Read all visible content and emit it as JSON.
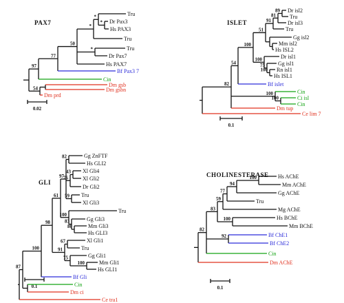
{
  "colors": {
    "black": "#111111",
    "blue": "#2b2bd9",
    "green": "#13a313",
    "red": "#e0301e"
  },
  "panels": {
    "pax7": {
      "title": "PAX7",
      "scale_label": "0.02",
      "leaves": [
        {
          "text": "Tru",
          "color": "black"
        },
        {
          "text": "Dr Pax3",
          "color": "black"
        },
        {
          "text": "Hs PAX3",
          "color": "black"
        },
        {
          "text": "Tru",
          "color": "black"
        },
        {
          "text": "Tru",
          "color": "black"
        },
        {
          "text": "Dr Pax7",
          "color": "black"
        },
        {
          "text": "Hs PAX7",
          "color": "black"
        },
        {
          "text": "Bf Pax3 7",
          "color": "blue"
        },
        {
          "text": "Cin",
          "color": "green"
        },
        {
          "text": "Dm gsb",
          "color": "red"
        },
        {
          "text": "Dm gsbn",
          "color": "red"
        },
        {
          "text": "Dm prd",
          "color": "red"
        }
      ],
      "boot": [
        "*",
        "*",
        "*",
        "*",
        "*",
        "*",
        "50",
        "77",
        "97",
        "54"
      ]
    },
    "islet": {
      "title": "ISLET",
      "scale_label": "0.1",
      "leaves": [
        {
          "text": "Dr isl2",
          "color": "black"
        },
        {
          "text": "Tru",
          "color": "black"
        },
        {
          "text": "Dr isl3",
          "color": "black"
        },
        {
          "text": "Tru",
          "color": "black"
        },
        {
          "text": "Gg isl2",
          "color": "black"
        },
        {
          "text": "Mm isl2",
          "color": "black"
        },
        {
          "text": "Hs ISL2",
          "color": "black"
        },
        {
          "text": "Dr isl1",
          "color": "black"
        },
        {
          "text": "Gg isl1",
          "color": "black"
        },
        {
          "text": "Rn isl1",
          "color": "black"
        },
        {
          "text": "Hs ISL1",
          "color": "black"
        },
        {
          "text": "Bf islet",
          "color": "blue"
        },
        {
          "text": "Cin",
          "color": "green"
        },
        {
          "text": "Ci isl",
          "color": "green"
        },
        {
          "text": "Cin",
          "color": "green"
        },
        {
          "text": "Dm tup",
          "color": "red"
        },
        {
          "text": "Ce lim 7",
          "color": "red"
        }
      ],
      "boot": [
        "89",
        "81",
        "91",
        "51",
        "100",
        "100",
        "75",
        "100",
        "54",
        "82",
        "100",
        "100"
      ]
    },
    "gli": {
      "title": "GLI",
      "scale_label": "0.1",
      "leaves": [
        {
          "text": "Gg ZnFTF",
          "color": "black"
        },
        {
          "text": "Hs GLI2",
          "color": "black"
        },
        {
          "text": "Xl Gli4",
          "color": "black"
        },
        {
          "text": "Xl Gli2",
          "color": "black"
        },
        {
          "text": "Dr Gli2",
          "color": "black"
        },
        {
          "text": "Tru",
          "color": "black"
        },
        {
          "text": "Xl Gli3",
          "color": "black"
        },
        {
          "text": "Tru",
          "color": "black"
        },
        {
          "text": "Gg Gli3",
          "color": "black"
        },
        {
          "text": "Mm Gli3",
          "color": "black"
        },
        {
          "text": "Hs GLI3",
          "color": "black"
        },
        {
          "text": "Xl Gli1",
          "color": "black"
        },
        {
          "text": "Tru",
          "color": "black"
        },
        {
          "text": "Gg Gli1",
          "color": "black"
        },
        {
          "text": "Mm Gli1",
          "color": "black"
        },
        {
          "text": "Hs GLI1",
          "color": "black"
        },
        {
          "text": "Bf Gli",
          "color": "blue"
        },
        {
          "text": "Cin",
          "color": "green"
        },
        {
          "text": "Dm ci",
          "color": "red"
        },
        {
          "text": "Ce tra1",
          "color": "red"
        }
      ],
      "boot": [
        "82",
        "43",
        "76",
        "99",
        "97",
        "59",
        "100",
        "61",
        "42",
        "80",
        "83",
        "67",
        "100",
        "91",
        "98",
        "75",
        "100",
        "87"
      ]
    },
    "cholinesterase": {
      "title": "CHOLINESTERASE",
      "scale_label": "0.1",
      "leaves": [
        {
          "text": "Hs AChE",
          "color": "black"
        },
        {
          "text": "Mm AChE",
          "color": "black"
        },
        {
          "text": "Gg AChE",
          "color": "black"
        },
        {
          "text": "Tru",
          "color": "black"
        },
        {
          "text": "Mg AChE",
          "color": "black"
        },
        {
          "text": "Hs BChE",
          "color": "black"
        },
        {
          "text": "Mm BChE",
          "color": "black"
        },
        {
          "text": "Bf ChE1",
          "color": "blue"
        },
        {
          "text": "Bf ChE2",
          "color": "blue"
        },
        {
          "text": "Cin",
          "color": "green"
        },
        {
          "text": "Dm AChE",
          "color": "red"
        }
      ],
      "boot": [
        "100",
        "94",
        "77",
        "59",
        "83",
        "100",
        "82",
        "92"
      ]
    }
  }
}
